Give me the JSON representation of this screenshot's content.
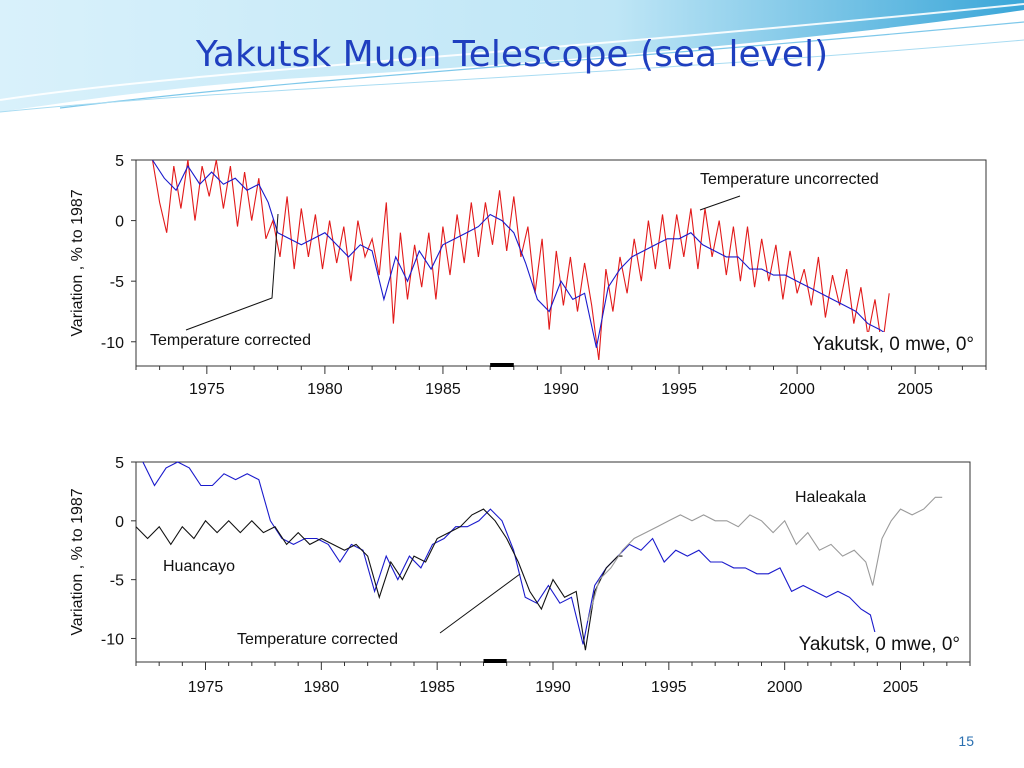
{
  "slide": {
    "title": "Yakutsk Muon Telescope (sea level)",
    "page_number": "15"
  },
  "colors": {
    "title": "#1f3fbf",
    "uncorrected": "#e21b1b",
    "corrected": "#1a1acc",
    "huancayo": "#111111",
    "haleakala": "#9a9a9a",
    "accent_wave": "#3aa6d8"
  },
  "chart_data": [
    {
      "type": "line",
      "title": "",
      "xlabel": "",
      "ylabel": "Variation ,  %  to 1987",
      "xlim": [
        1972,
        2008
      ],
      "ylim": [
        -12,
        5
      ],
      "x_ticks": [
        1975,
        1980,
        1985,
        1990,
        1995,
        2000,
        2005
      ],
      "y_ticks": [
        5,
        0,
        -5,
        -10
      ],
      "grid": false,
      "base_period_bar": [
        1987,
        1988
      ],
      "series": [
        {
          "name": "Temperature uncorrected",
          "color": "#e21b1b",
          "x": [
            1972.7,
            1973.0,
            1973.3,
            1973.6,
            1973.9,
            1974.2,
            1974.5,
            1974.8,
            1975.1,
            1975.4,
            1975.7,
            1976.0,
            1976.3,
            1976.6,
            1976.9,
            1977.2,
            1977.5,
            1977.8,
            1978.1,
            1978.4,
            1978.7,
            1979.0,
            1979.3,
            1979.6,
            1979.9,
            1980.2,
            1980.5,
            1980.8,
            1981.1,
            1981.4,
            1981.7,
            1982.0,
            1982.3,
            1982.6,
            1982.9,
            1983.2,
            1983.5,
            1983.8,
            1984.1,
            1984.4,
            1984.7,
            1985.0,
            1985.3,
            1985.6,
            1985.9,
            1986.2,
            1986.5,
            1986.8,
            1987.1,
            1987.4,
            1987.7,
            1988.0,
            1988.3,
            1988.6,
            1988.9,
            1989.2,
            1989.5,
            1989.8,
            1990.1,
            1990.4,
            1990.7,
            1991.0,
            1991.3,
            1991.6,
            1991.9,
            1992.2,
            1992.5,
            1992.8,
            1993.1,
            1993.4,
            1993.7,
            1994.0,
            1994.3,
            1994.6,
            1994.9,
            1995.2,
            1995.5,
            1995.8,
            1996.1,
            1996.4,
            1996.7,
            1997.0,
            1997.3,
            1997.6,
            1997.9,
            1998.2,
            1998.5,
            1998.8,
            1999.1,
            1999.4,
            1999.7,
            2000.0,
            2000.3,
            2000.6,
            2000.9,
            2001.2,
            2001.5,
            2001.8,
            2002.1,
            2002.4,
            2002.7,
            2003.0,
            2003.3,
            2003.6,
            2003.9
          ],
          "y": [
            5.0,
            1.5,
            -1.0,
            4.5,
            1.0,
            5.0,
            0.0,
            4.5,
            2.0,
            5.0,
            1.0,
            4.5,
            -0.5,
            4.0,
            0.0,
            3.5,
            -1.5,
            0.0,
            -3.0,
            2.0,
            -4.0,
            1.0,
            -3.0,
            0.5,
            -4.0,
            0.0,
            -3.5,
            -0.5,
            -5.0,
            0.0,
            -3.0,
            -1.5,
            -4.5,
            1.5,
            -8.5,
            -1.0,
            -6.5,
            -2.0,
            -5.5,
            -1.0,
            -6.5,
            -0.5,
            -4.5,
            0.5,
            -3.5,
            1.5,
            -3.0,
            1.5,
            -2.0,
            2.5,
            -2.5,
            2.0,
            -3.0,
            -0.5,
            -6.0,
            -1.5,
            -9.0,
            -2.5,
            -7.0,
            -3.0,
            -7.5,
            -3.5,
            -7.0,
            -11.5,
            -4.0,
            -7.5,
            -3.0,
            -6.0,
            -1.5,
            -5.0,
            0.0,
            -4.0,
            0.5,
            -4.0,
            0.5,
            -3.0,
            1.0,
            -4.0,
            1.0,
            -3.0,
            0.0,
            -4.5,
            -0.5,
            -5.0,
            -0.5,
            -5.5,
            -1.5,
            -5.0,
            -2.0,
            -6.5,
            -2.5,
            -6.0,
            -4.0,
            -7.0,
            -3.0,
            -8.0,
            -4.5,
            -7.0,
            -4.0,
            -8.5,
            -5.5,
            -9.5,
            -6.5,
            -10.5,
            -6.0
          ]
        },
        {
          "name": "Temperature corrected",
          "color": "#1a1acc",
          "x": [
            1972.7,
            1973.2,
            1973.7,
            1974.2,
            1974.7,
            1975.2,
            1975.7,
            1976.2,
            1976.7,
            1977.2,
            1977.6,
            1978.0,
            1978.5,
            1979.0,
            1979.5,
            1980.0,
            1980.5,
            1981.0,
            1981.5,
            1982.0,
            1982.5,
            1983.0,
            1983.5,
            1984.0,
            1984.5,
            1985.0,
            1985.5,
            1986.0,
            1986.5,
            1987.0,
            1987.5,
            1988.0,
            1988.5,
            1989.0,
            1989.5,
            1990.0,
            1990.5,
            1991.0,
            1991.5,
            1992.0,
            1992.5,
            1993.0,
            1993.5,
            1994.0,
            1994.5,
            1995.0,
            1995.5,
            1996.0,
            1996.5,
            1997.0,
            1997.5,
            1998.0,
            1998.5,
            1999.0,
            1999.5,
            2000.0,
            2000.5,
            2001.0,
            2001.5,
            2002.0,
            2002.5,
            2003.0,
            2003.5,
            2003.9
          ],
          "y": [
            5.0,
            3.5,
            2.5,
            4.5,
            3.0,
            4.0,
            3.0,
            3.5,
            2.5,
            3.0,
            1.5,
            -1.0,
            -1.5,
            -2.0,
            -1.5,
            -1.0,
            -2.0,
            -3.0,
            -2.0,
            -2.5,
            -6.5,
            -3.0,
            -5.0,
            -2.5,
            -4.0,
            -2.0,
            -1.5,
            -1.0,
            -0.5,
            0.5,
            0.0,
            -1.0,
            -3.5,
            -6.5,
            -7.5,
            -5.0,
            -6.5,
            -6.0,
            -10.5,
            -5.5,
            -4.0,
            -3.0,
            -2.5,
            -2.0,
            -1.5,
            -1.5,
            -1.0,
            -2.0,
            -2.5,
            -3.0,
            -3.0,
            -4.0,
            -4.0,
            -4.5,
            -4.5,
            -5.0,
            -5.5,
            -6.0,
            -6.5,
            -7.0,
            -7.5,
            -8.5,
            -9.0,
            -9.5
          ]
        }
      ],
      "annotations": [
        {
          "text": "Temperature uncorrected",
          "x": 1996.0,
          "y": 1.0
        },
        {
          "text": "Temperature corrected",
          "x": 1977.8,
          "y": 0.0
        },
        {
          "text": "Yakutsk, 0 mwe, 0°",
          "x": 2003.5,
          "y": -9.5
        }
      ]
    },
    {
      "type": "line",
      "title": "",
      "xlabel": "",
      "ylabel": "Variation ,  %  to 1987",
      "xlim": [
        1972,
        2008
      ],
      "ylim": [
        -12,
        5
      ],
      "x_ticks": [
        1975,
        1980,
        1985,
        1990,
        1995,
        2000,
        2005
      ],
      "y_ticks": [
        5,
        0,
        -5,
        -10
      ],
      "grid": false,
      "base_period_bar": [
        1987,
        1988
      ],
      "series": [
        {
          "name": "Yakutsk",
          "color": "#1a1acc",
          "x": [
            1972.3,
            1972.8,
            1973.3,
            1973.8,
            1974.3,
            1974.8,
            1975.3,
            1975.8,
            1976.3,
            1976.8,
            1977.3,
            1977.8,
            1978.3,
            1978.8,
            1979.3,
            1979.8,
            1980.3,
            1980.8,
            1981.3,
            1981.8,
            1982.3,
            1982.8,
            1983.3,
            1983.8,
            1984.3,
            1984.8,
            1985.3,
            1985.8,
            1986.3,
            1986.8,
            1987.3,
            1987.8,
            1988.3,
            1988.8,
            1989.3,
            1989.8,
            1990.3,
            1990.8,
            1991.3,
            1991.8,
            1992.3,
            1992.8,
            1993.3,
            1993.8,
            1994.3,
            1994.8,
            1995.3,
            1995.8,
            1996.3,
            1996.8,
            1997.3,
            1997.8,
            1998.3,
            1998.8,
            1999.3,
            1999.8,
            2000.3,
            2000.8,
            2001.3,
            2001.8,
            2002.3,
            2002.8,
            2003.3,
            2003.7,
            2003.9
          ],
          "y": [
            5.0,
            3.0,
            4.5,
            5.0,
            4.5,
            3.0,
            3.0,
            4.0,
            3.5,
            4.0,
            3.5,
            0.0,
            -1.5,
            -2.0,
            -1.5,
            -1.5,
            -2.0,
            -3.5,
            -2.0,
            -2.5,
            -6.0,
            -3.0,
            -5.0,
            -3.0,
            -4.0,
            -2.0,
            -1.5,
            -0.5,
            -0.5,
            0.0,
            1.0,
            0.0,
            -2.5,
            -6.5,
            -7.0,
            -5.5,
            -7.0,
            -6.5,
            -10.5,
            -5.5,
            -4.0,
            -3.0,
            -2.0,
            -2.5,
            -1.5,
            -3.5,
            -2.5,
            -3.0,
            -2.5,
            -3.5,
            -3.5,
            -4.0,
            -4.0,
            -4.5,
            -4.5,
            -4.0,
            -6.0,
            -5.5,
            -6.0,
            -6.5,
            -6.0,
            -6.5,
            -7.5,
            -8.0,
            -9.5
          ]
        },
        {
          "name": "Huancayo",
          "color": "#111111",
          "x": [
            1972.0,
            1972.5,
            1973.0,
            1973.5,
            1974.0,
            1974.5,
            1975.0,
            1975.5,
            1976.0,
            1976.5,
            1977.0,
            1977.5,
            1978.0,
            1978.5,
            1979.0,
            1979.5,
            1980.0,
            1980.5,
            1981.0,
            1981.5,
            1982.0,
            1982.5,
            1983.0,
            1983.5,
            1984.0,
            1984.5,
            1985.0,
            1985.5,
            1986.0,
            1986.5,
            1987.0,
            1987.5,
            1988.0,
            1988.5,
            1989.0,
            1989.5,
            1990.0,
            1990.5,
            1991.0,
            1991.4,
            1991.8,
            1992.3,
            1992.8,
            1993.0
          ],
          "y": [
            -0.5,
            -1.5,
            -0.5,
            -2.0,
            -0.5,
            -1.5,
            0.0,
            -1.0,
            0.0,
            -1.0,
            0.0,
            -1.0,
            -0.5,
            -2.0,
            -1.0,
            -2.0,
            -1.5,
            -2.0,
            -2.5,
            -2.0,
            -3.0,
            -6.5,
            -3.5,
            -5.0,
            -3.0,
            -3.5,
            -1.5,
            -1.0,
            -0.5,
            0.5,
            1.0,
            0.0,
            -1.5,
            -3.5,
            -6.0,
            -7.5,
            -5.0,
            -6.5,
            -6.0,
            -11.0,
            -6.0,
            -4.0,
            -3.0,
            -3.0
          ]
        },
        {
          "name": "Haleakala",
          "color": "#9a9a9a",
          "x": [
            1991.5,
            1992.0,
            1992.5,
            1993.0,
            1993.5,
            1994.0,
            1994.5,
            1995.0,
            1995.5,
            1996.0,
            1996.5,
            1997.0,
            1997.5,
            1998.0,
            1998.5,
            1999.0,
            1999.5,
            2000.0,
            2000.5,
            2001.0,
            2001.5,
            2002.0,
            2002.5,
            2003.0,
            2003.5,
            2003.8,
            2004.2,
            2004.6,
            2005.0,
            2005.5,
            2006.0,
            2006.5,
            2006.8
          ],
          "y": [
            -8.5,
            -5.0,
            -4.0,
            -2.5,
            -1.5,
            -1.0,
            -0.5,
            0.0,
            0.5,
            0.0,
            0.5,
            0.0,
            0.0,
            -0.5,
            0.5,
            0.0,
            -1.0,
            0.0,
            -2.0,
            -1.0,
            -2.5,
            -2.0,
            -3.0,
            -2.5,
            -3.5,
            -5.5,
            -1.5,
            0.0,
            1.0,
            0.5,
            1.0,
            2.0,
            2.0
          ]
        }
      ],
      "annotations": [
        {
          "text": "Haleakala",
          "x": 2001.5,
          "y": 2.5
        },
        {
          "text": "Huancayo",
          "x": 1976.0,
          "y": -4.0
        },
        {
          "text": "Temperature corrected",
          "x": 1989.0,
          "y": -4.0
        },
        {
          "text": "Yakutsk, 0 mwe, 0°",
          "x": 2003.0,
          "y": -10.0
        }
      ]
    }
  ]
}
